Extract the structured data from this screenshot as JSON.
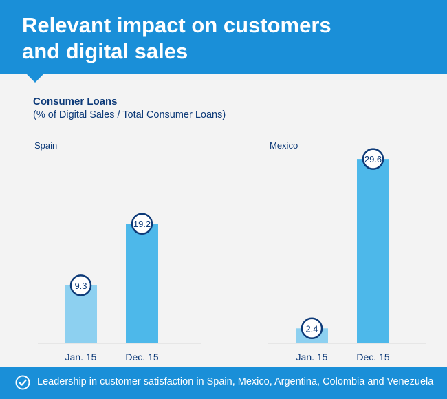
{
  "header": {
    "title_line1": "Relevant impact on customers",
    "title_line2": "and digital sales"
  },
  "subtitle": "Consumer Loans",
  "subtitle2": "(% of Digital Sales / Total Consumer Loans)",
  "colors": {
    "header": "#1a8fd8",
    "bar_light": "#8dd0f0",
    "bar_dark": "#4db8ea",
    "circle_stroke": "#0d3a78",
    "text_dark": "#0d3a78"
  },
  "chart_data": [
    {
      "type": "bar",
      "title": "Spain",
      "categories": [
        "Jan. 15",
        "Dec. 15"
      ],
      "values": [
        9.3,
        19.2
      ],
      "value_labels": [
        "9.3",
        "19.2"
      ],
      "ylabel": "% of Digital Sales / Total Consumer Loans",
      "ylim": [
        0,
        30
      ]
    },
    {
      "type": "bar",
      "title": "Mexico",
      "categories": [
        "Jan. 15",
        "Dec. 15"
      ],
      "values": [
        2.4,
        29.6
      ],
      "value_labels": [
        "2.4",
        "29.6"
      ],
      "ylabel": "% of Digital Sales / Total Consumer Loans",
      "ylim": [
        0,
        30
      ]
    }
  ],
  "footer": {
    "text": "Leadership in customer satisfaction in Spain, Mexico, Argentina, Colombia and Venezuela",
    "icon": "check-circle-icon"
  }
}
